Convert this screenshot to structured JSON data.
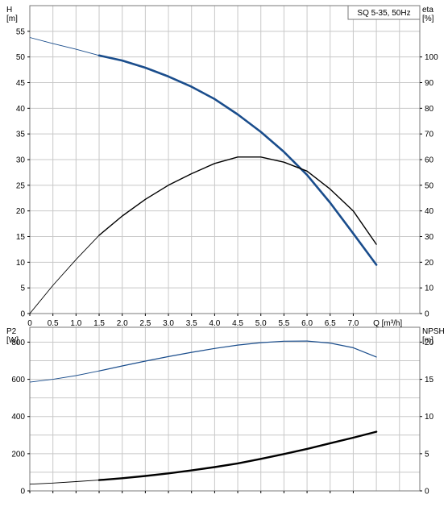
{
  "colors": {
    "background": "#ffffff",
    "grid": "#c8c8c8",
    "frame": "#7a7a7a",
    "head_curve": "#1a4d8c",
    "efficiency_curve": "#000000",
    "power_curve": "#1a4d8c",
    "npsh_curve": "#000000"
  },
  "chart_data": [
    {
      "type": "line",
      "title": "SQ 5-35, 50Hz",
      "xlabel": "Q [m³/h]",
      "ylabel_left_line1": "H",
      "ylabel_left_line2": "[m]",
      "ylabel_right_line1": "eta",
      "ylabel_right_line2": "[%]",
      "xlim": [
        0,
        7.5
      ],
      "ylim_left": [
        0,
        60
      ],
      "ylim_right": [
        0,
        120
      ],
      "x_ticks": [
        "0",
        "0.5",
        "1.0",
        "1.5",
        "2.0",
        "2.5",
        "3.0",
        "3.5",
        "4.0",
        "4.5",
        "5.0",
        "5.5",
        "6.0",
        "6.5",
        "7.0"
      ],
      "x_tick_values": [
        0,
        0.5,
        1.0,
        1.5,
        2.0,
        2.5,
        3.0,
        3.5,
        4.0,
        4.5,
        5.0,
        5.5,
        6.0,
        6.5,
        7.0
      ],
      "x_axis_unit_label": "Q [m³/h]",
      "x_axis_unit_position": 7.5,
      "y_ticks_left": [
        "0",
        "5",
        "10",
        "15",
        "20",
        "25",
        "30",
        "35",
        "40",
        "45",
        "50",
        "55"
      ],
      "y_tick_values_left": [
        0,
        5,
        10,
        15,
        20,
        25,
        30,
        35,
        40,
        45,
        50,
        55
      ],
      "y_ticks_right": [
        "0",
        "10",
        "20",
        "30",
        "40",
        "50",
        "60",
        "70",
        "80",
        "90",
        "100"
      ],
      "y_tick_values_right": [
        0,
        10,
        20,
        30,
        40,
        50,
        60,
        70,
        80,
        90,
        100
      ],
      "grid": true,
      "series": [
        {
          "axis": "left",
          "thin_until": 1.5,
          "x": [
            0,
            0.5,
            1.0,
            1.5,
            2.0,
            2.5,
            3.0,
            3.5,
            4.0,
            4.5,
            5.0,
            5.5,
            6.0,
            6.5,
            7.0,
            7.5
          ],
          "y": [
            53.8,
            52.6,
            51.5,
            50.3,
            49.3,
            47.9,
            46.2,
            44.2,
            41.8,
            38.8,
            35.4,
            31.5,
            27.0,
            21.6,
            15.6,
            9.5
          ]
        },
        {
          "axis": "right",
          "thin_until": 1.5,
          "x": [
            0,
            0.5,
            1.0,
            1.5,
            2.0,
            2.5,
            3.0,
            3.5,
            4.0,
            4.5,
            5.0,
            5.5,
            6.0,
            6.5,
            7.0,
            7.5
          ],
          "y": [
            0,
            11,
            21,
            30.5,
            38,
            44.5,
            50,
            54.5,
            58.5,
            61,
            61,
            59,
            55.5,
            48.5,
            40,
            27
          ]
        }
      ]
    },
    {
      "type": "line",
      "ylabel_left_line1": "P2",
      "ylabel_left_line2": "[W]",
      "ylabel_right_line1": "NPSH",
      "ylabel_right_line2": "[m]",
      "xlim": [
        0,
        7.5
      ],
      "ylim_left": [
        0,
        880
      ],
      "ylim_right": [
        0,
        22
      ],
      "y_ticks_left": [
        "0",
        "200",
        "400",
        "600",
        "800"
      ],
      "y_tick_values_left": [
        0,
        200,
        400,
        600,
        800
      ],
      "y_ticks_right": [
        "0",
        "5",
        "10",
        "15",
        "20"
      ],
      "y_tick_values_right": [
        0,
        5,
        10,
        15,
        20
      ],
      "grid": true,
      "series": [
        {
          "axis": "left",
          "thin_until": 1.5,
          "x": [
            0,
            0.5,
            1.0,
            1.5,
            2.0,
            2.5,
            3.0,
            3.5,
            4.0,
            4.5,
            5.0,
            5.5,
            6.0,
            6.5,
            7.0,
            7.5
          ],
          "y": [
            585,
            600,
            620,
            645,
            672,
            698,
            722,
            745,
            766,
            784,
            797,
            805,
            806,
            795,
            770,
            720
          ]
        },
        {
          "axis": "right",
          "thin_until": 1.5,
          "x": [
            0,
            0.5,
            1.0,
            1.5,
            2.0,
            2.5,
            3.0,
            3.5,
            4.0,
            4.5,
            5.0,
            5.5,
            6.0,
            6.5,
            7.0,
            7.5
          ],
          "y": [
            0.9,
            1.05,
            1.25,
            1.45,
            1.7,
            2.0,
            2.35,
            2.75,
            3.2,
            3.7,
            4.3,
            4.95,
            5.65,
            6.4,
            7.15,
            7.95
          ]
        }
      ]
    }
  ]
}
